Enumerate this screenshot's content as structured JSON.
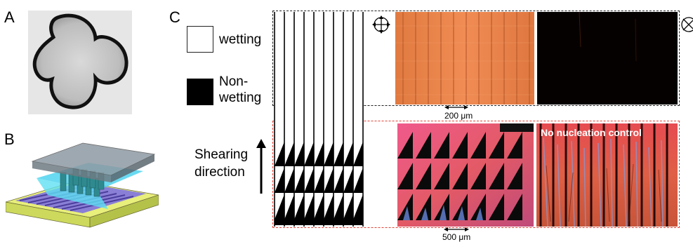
{
  "panels": {
    "a_label": "A",
    "b_label": "B",
    "c_label": "C"
  },
  "legend": {
    "wetting": "wetting",
    "nonwetting_line1": "Non-",
    "nonwetting_line2": "wetting"
  },
  "shearing": {
    "line1": "Shearing",
    "line2": "direction"
  },
  "scale_top": "200 μm",
  "scale_bottom": "500 μm",
  "nucleation_label": "No nucleation control",
  "colors": {
    "orange_film": "#e8824a",
    "dark_film": "#050000",
    "top_border": "#222222",
    "bottom_border": "#e0453a"
  }
}
